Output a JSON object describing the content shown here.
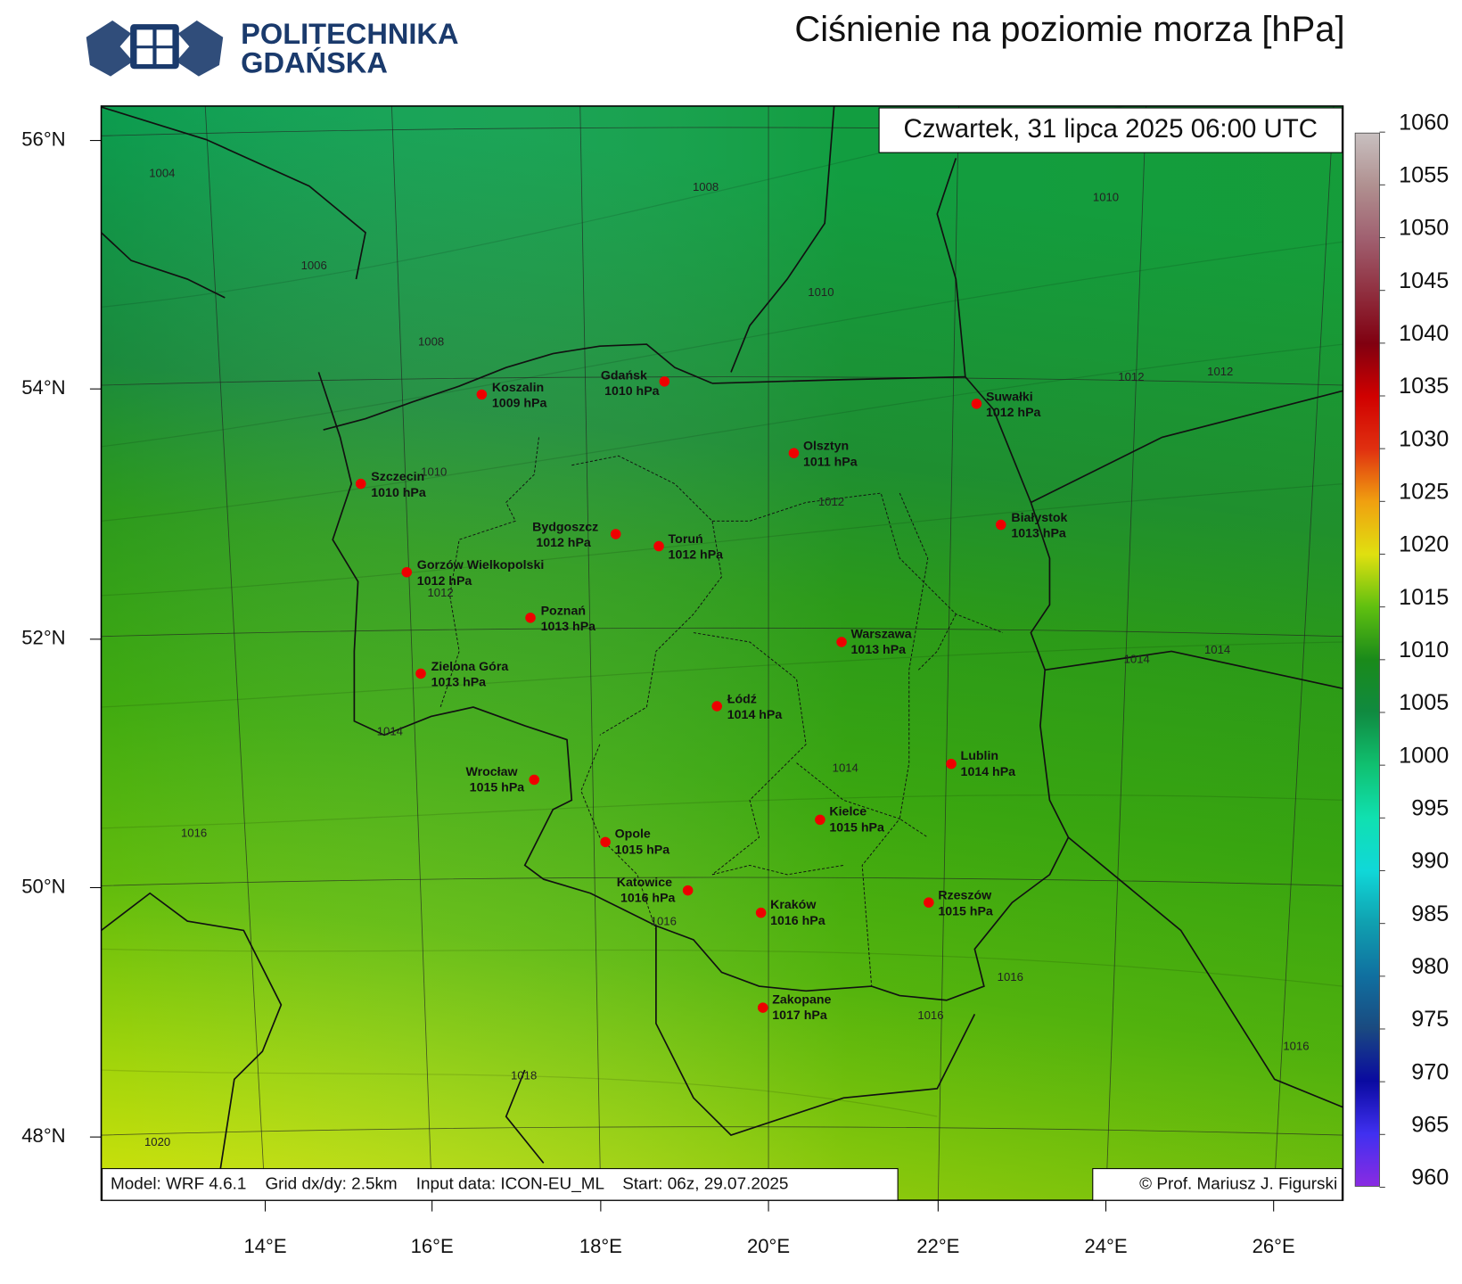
{
  "header": {
    "logo": [
      "POLITECHNIKA",
      "GDAŃSKA"
    ],
    "title": "Ciśnienie na poziomie morza [hPa]"
  },
  "map": {
    "timestamp": "Czwartek, 31 lipca 2025 06:00 UTC",
    "latitudes": [
      "56°N",
      "54°N",
      "52°N",
      "50°N",
      "48°N"
    ],
    "longitudes": [
      "14°E",
      "16°E",
      "18°E",
      "20°E",
      "22°E",
      "24°E",
      "26°E"
    ],
    "cities": [
      {
        "name": "Koszalin",
        "pressure": "1009 hPa"
      },
      {
        "name": "Gdańsk",
        "pressure": "1010 hPa"
      },
      {
        "name": "Suwałki",
        "pressure": "1012 hPa"
      },
      {
        "name": "Olsztyn",
        "pressure": "1011 hPa"
      },
      {
        "name": "Szczecin",
        "pressure": "1010 hPa"
      },
      {
        "name": "Bydgoszcz",
        "pressure": "1012 hPa"
      },
      {
        "name": "Toruń",
        "pressure": "1012 hPa"
      },
      {
        "name": "Białystok",
        "pressure": "1013 hPa"
      },
      {
        "name": "Gorzów Wielkopolski",
        "pressure": "1012 hPa"
      },
      {
        "name": "Poznań",
        "pressure": "1013 hPa"
      },
      {
        "name": "Warszawa",
        "pressure": "1013 hPa"
      },
      {
        "name": "Zielona Góra",
        "pressure": "1013 hPa"
      },
      {
        "name": "Łódź",
        "pressure": "1014 hPa"
      },
      {
        "name": "Lublin",
        "pressure": "1014 hPa"
      },
      {
        "name": "Wrocław",
        "pressure": "1015 hPa"
      },
      {
        "name": "Kielce",
        "pressure": "1015 hPa"
      },
      {
        "name": "Opole",
        "pressure": "1015 hPa"
      },
      {
        "name": "Katowice",
        "pressure": "1016 hPa"
      },
      {
        "name": "Kraków",
        "pressure": "1016 hPa"
      },
      {
        "name": "Rzeszów",
        "pressure": "1015 hPa"
      },
      {
        "name": "Zakopane",
        "pressure": "1017 hPa"
      }
    ],
    "contour_labels": [
      "1004",
      "1008",
      "1010",
      "1006",
      "1010",
      "1008",
      "1012",
      "1012",
      "1010",
      "1012",
      "1012",
      "1014",
      "1014",
      "1014",
      "1014",
      "1016",
      "1016",
      "1016",
      "1016",
      "1016",
      "1018",
      "1020"
    ],
    "footer_model": "Model: WRF 4.6.1    Grid dx/dy: 2.5km    Input data: ICON-EU_ML    Start: 06z, 29.07.2025",
    "footer_credit": "© Prof. Mariusz J. Figurski"
  },
  "colorbar": {
    "ticks": [
      960,
      965,
      970,
      975,
      980,
      985,
      990,
      995,
      1000,
      1005,
      1010,
      1015,
      1020,
      1025,
      1030,
      1035,
      1040,
      1045,
      1050,
      1055,
      1060
    ]
  }
}
